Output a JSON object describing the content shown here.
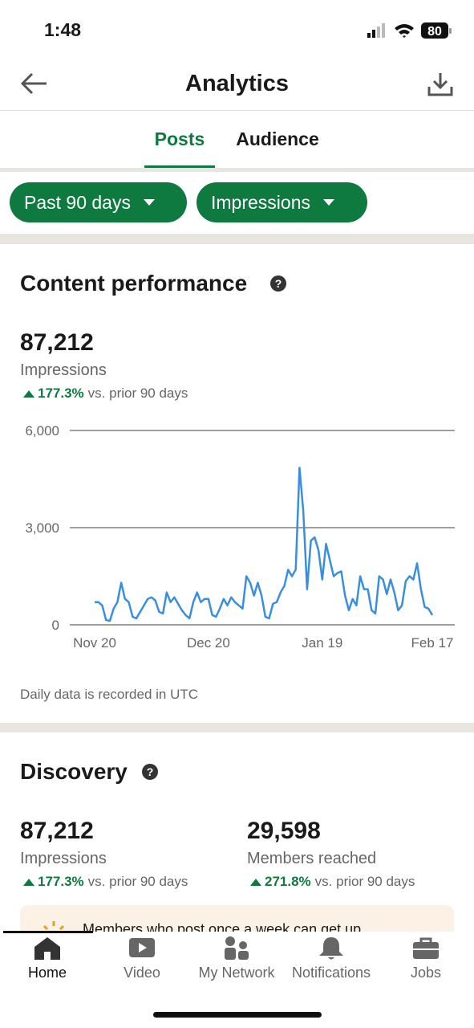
{
  "status_bar": {
    "time": "1:48",
    "battery": "80"
  },
  "header": {
    "title": "Analytics"
  },
  "tabs": [
    "Posts",
    "Audience"
  ],
  "filters": [
    "Past 90 days",
    "Impressions"
  ],
  "content_performance": {
    "title": "Content performance",
    "total": "87,212",
    "metric": "Impressions",
    "change": "177.3%",
    "comparison": "vs. prior 90 days",
    "note": "Daily data is recorded in UTC"
  },
  "chart_data": {
    "type": "line",
    "color": "#3a8ee0",
    "grid": true,
    "categories": [
      "Nov 20",
      null,
      null,
      null,
      null,
      null,
      null,
      null,
      null,
      null,
      null,
      null,
      null,
      null,
      null,
      null,
      null,
      null,
      null,
      null,
      null,
      null,
      null,
      null,
      null,
      null,
      null,
      null,
      null,
      null,
      "Dec 20",
      null,
      null,
      null,
      null,
      null,
      null,
      null,
      null,
      null,
      null,
      null,
      null,
      null,
      null,
      null,
      null,
      null,
      null,
      null,
      null,
      null,
      null,
      null,
      null,
      null,
      null,
      null,
      null,
      null,
      "Jan 19",
      null,
      null,
      null,
      null,
      null,
      null,
      null,
      null,
      null,
      null,
      null,
      null,
      null,
      null,
      null,
      null,
      null,
      null,
      null,
      null,
      null,
      null,
      null,
      null,
      null,
      null,
      null,
      null,
      "Feb 17"
    ],
    "values": [
      700,
      700,
      600,
      150,
      120,
      500,
      700,
      1300,
      800,
      700,
      250,
      200,
      400,
      600,
      800,
      850,
      750,
      400,
      350,
      1000,
      700,
      850,
      650,
      450,
      300,
      200,
      700,
      1000,
      700,
      800,
      800,
      300,
      250,
      500,
      800,
      600,
      850,
      700,
      600,
      500,
      1500,
      1300,
      900,
      1300,
      900,
      250,
      200,
      650,
      700,
      1000,
      1200,
      1700,
      1500,
      1700,
      4850,
      3500,
      1100,
      2600,
      2700,
      2300,
      1400,
      2500,
      2000,
      1500,
      1600,
      1650,
      900,
      450,
      800,
      600,
      1500,
      1100,
      1100,
      450,
      350,
      1500,
      1400,
      950,
      1400,
      1000,
      450,
      600,
      1350,
      1500,
      1400,
      1900,
      1100,
      550,
      500,
      300
    ],
    "ylim": [
      0,
      6000
    ],
    "yticks": [
      0,
      {
        "value": 3000,
        "label": "3,000"
      },
      {
        "value": 6000,
        "label": "6,000"
      }
    ]
  },
  "discovery": {
    "title": "Discovery",
    "stats": [
      {
        "value": "87,212",
        "label": "Impressions",
        "change": "177.3%",
        "comparison": "vs. prior 90 days"
      },
      {
        "value": "29,598",
        "label": "Members reached",
        "change": "271.8%",
        "comparison": "vs. prior 90 days"
      }
    ]
  },
  "banner": {
    "text": "Members who post once a week can get up"
  },
  "nav": [
    "Home",
    "Video",
    "My Network",
    "Notifications",
    "Jobs"
  ]
}
